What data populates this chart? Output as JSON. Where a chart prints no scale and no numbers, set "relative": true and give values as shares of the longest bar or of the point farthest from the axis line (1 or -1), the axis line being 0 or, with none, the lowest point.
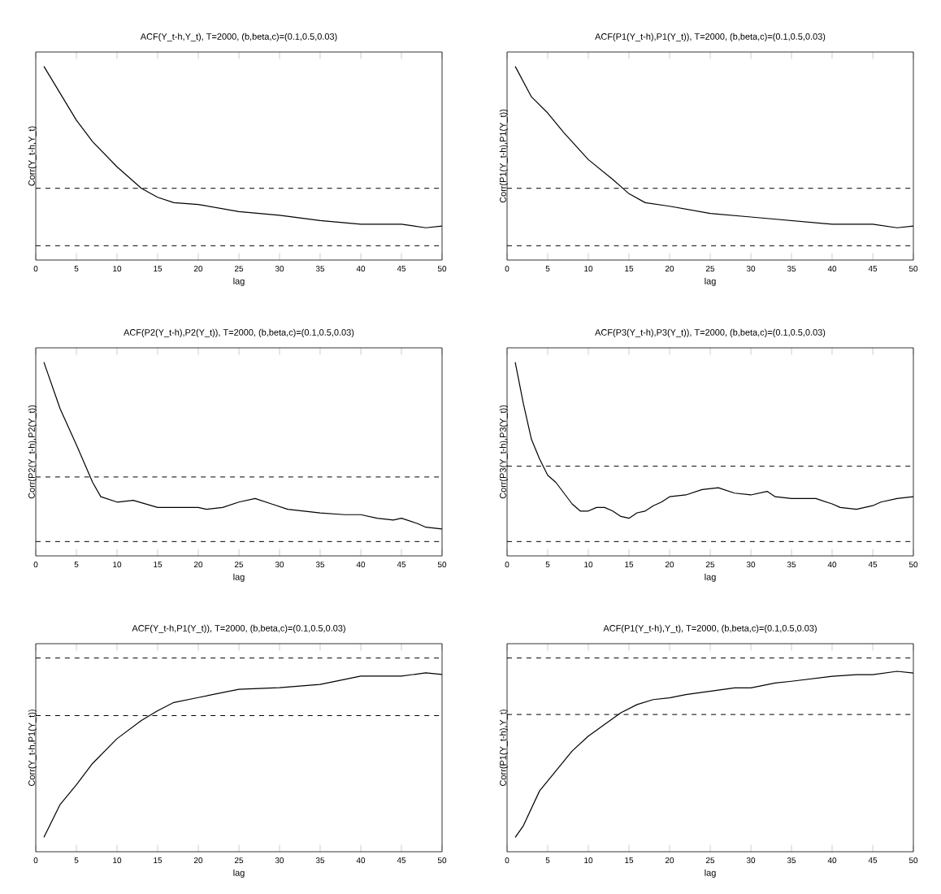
{
  "chart_data": [
    {
      "type": "line",
      "relative": true,
      "title": "ACF(Y_t-h,Y_t), T=2000, (b,beta,c)=(0.1,0.5,0.03)",
      "xlabel": "lag",
      "ylabel": "Corr(Y_t-h,Y_t)",
      "xlim": [
        0,
        50
      ],
      "xticks": [
        0,
        5,
        10,
        15,
        20,
        25,
        30,
        35,
        40,
        45,
        50
      ],
      "x": [
        1,
        3,
        5,
        7,
        10,
        13,
        15,
        17,
        20,
        25,
        30,
        35,
        40,
        45,
        48,
        50
      ],
      "series": [
        {
          "color": "#000000",
          "line_style": "solid",
          "values": [
            1.0,
            0.85,
            0.7,
            0.58,
            0.44,
            0.32,
            0.27,
            0.24,
            0.23,
            0.19,
            0.17,
            0.14,
            0.12,
            0.12,
            0.1,
            0.11
          ]
        }
      ],
      "ref_lines": [
        {
          "axis": "y",
          "value": 0.32,
          "line_style": "dashed"
        },
        {
          "axis": "y",
          "value": 0,
          "line_style": "dashed"
        }
      ]
    },
    {
      "type": "line",
      "relative": true,
      "title": "ACF(P1(Y_t-h),P1(Y_t)), T=2000, (b,beta,c)=(0.1,0.5,0.03)",
      "xlabel": "lag",
      "ylabel": "Corr(P1(Y_t-h),P1(Y_t))",
      "xlim": [
        0,
        50
      ],
      "xticks": [
        0,
        5,
        10,
        15,
        20,
        25,
        30,
        35,
        40,
        45,
        50
      ],
      "x": [
        1,
        3,
        5,
        7,
        10,
        13,
        15,
        17,
        20,
        25,
        30,
        35,
        40,
        45,
        48,
        50
      ],
      "series": [
        {
          "color": "#000000",
          "line_style": "solid",
          "values": [
            1.0,
            0.83,
            0.74,
            0.63,
            0.48,
            0.37,
            0.29,
            0.24,
            0.22,
            0.18,
            0.16,
            0.14,
            0.12,
            0.12,
            0.1,
            0.11
          ]
        }
      ],
      "ref_lines": [
        {
          "axis": "y",
          "value": 0.32,
          "line_style": "dashed"
        },
        {
          "axis": "y",
          "value": 0,
          "line_style": "dashed"
        }
      ]
    },
    {
      "type": "line",
      "relative": true,
      "title": "ACF(P2(Y_t-h),P2(Y_t)), T=2000, (b,beta,c)=(0.1,0.5,0.03)",
      "xlabel": "lag",
      "ylabel": "Corr(P2(Y_t-h),P2(Y_t))",
      "xlim": [
        0,
        50
      ],
      "xticks": [
        0,
        5,
        10,
        15,
        20,
        25,
        30,
        35,
        40,
        45,
        50
      ],
      "x": [
        1,
        3,
        5,
        7,
        8,
        10,
        12,
        15,
        18,
        20,
        21,
        23,
        25,
        27,
        29,
        31,
        33,
        35,
        38,
        40,
        42,
        44,
        45,
        47,
        48,
        50
      ],
      "series": [
        {
          "color": "#000000",
          "line_style": "solid",
          "values": [
            1.0,
            0.74,
            0.54,
            0.33,
            0.25,
            0.22,
            0.23,
            0.19,
            0.19,
            0.19,
            0.18,
            0.19,
            0.22,
            0.24,
            0.21,
            0.18,
            0.17,
            0.16,
            0.15,
            0.15,
            0.13,
            0.12,
            0.13,
            0.1,
            0.08,
            0.07
          ]
        }
      ],
      "ref_lines": [
        {
          "axis": "y",
          "value": 0.36,
          "line_style": "dashed"
        },
        {
          "axis": "y",
          "value": 0,
          "line_style": "dashed"
        }
      ]
    },
    {
      "type": "line",
      "relative": true,
      "title": "ACF(P3(Y_t-h),P3(Y_t)), T=2000, (b,beta,c)=(0.1,0.5,0.03)",
      "xlabel": "lag",
      "ylabel": "Corr(P3(Y_t-h),P3(Y_t))",
      "xlim": [
        0,
        50
      ],
      "xticks": [
        0,
        5,
        10,
        15,
        20,
        25,
        30,
        35,
        40,
        45,
        50
      ],
      "x": [
        1,
        2,
        3,
        4,
        5,
        6,
        7,
        8,
        9,
        10,
        11,
        12,
        13,
        14,
        15,
        16,
        17,
        18,
        19,
        20,
        22,
        24,
        26,
        28,
        30,
        32,
        33,
        35,
        38,
        40,
        41,
        43,
        45,
        46,
        48,
        50
      ],
      "series": [
        {
          "color": "#000000",
          "line_style": "solid",
          "values": [
            1.0,
            0.77,
            0.57,
            0.46,
            0.37,
            0.33,
            0.27,
            0.21,
            0.17,
            0.17,
            0.19,
            0.19,
            0.17,
            0.14,
            0.13,
            0.16,
            0.17,
            0.2,
            0.22,
            0.25,
            0.26,
            0.29,
            0.3,
            0.27,
            0.26,
            0.28,
            0.25,
            0.24,
            0.24,
            0.21,
            0.19,
            0.18,
            0.2,
            0.22,
            0.24,
            0.25
          ]
        }
      ],
      "ref_lines": [
        {
          "axis": "y",
          "value": 0.42,
          "line_style": "dashed"
        },
        {
          "axis": "y",
          "value": 0,
          "line_style": "dashed"
        }
      ]
    },
    {
      "type": "line",
      "relative": true,
      "title": "ACF(Y_t-h,P1(Y_t)), T=2000, (b,beta,c)=(0.1,0.5,0.03)",
      "xlabel": "lag",
      "ylabel": "Corr(Y_t-h,P1(Y_t))",
      "xlim": [
        0,
        50
      ],
      "xticks": [
        0,
        5,
        10,
        15,
        20,
        25,
        30,
        35,
        40,
        45,
        50
      ],
      "x": [
        1,
        3,
        5,
        7,
        10,
        13,
        15,
        17,
        20,
        25,
        30,
        35,
        40,
        45,
        48,
        50
      ],
      "series": [
        {
          "color": "#000000",
          "line_style": "solid",
          "values": [
            0.0,
            0.2,
            0.32,
            0.45,
            0.6,
            0.71,
            0.77,
            0.82,
            0.85,
            0.9,
            0.91,
            0.93,
            0.98,
            0.98,
            1.0,
            0.99
          ]
        }
      ],
      "ref_lines": [
        {
          "axis": "y",
          "value": 1.09,
          "line_style": "dashed"
        },
        {
          "axis": "y",
          "value": 0.74,
          "line_style": "dashed"
        }
      ]
    },
    {
      "type": "line",
      "relative": true,
      "title": "ACF(P1(Y_t-h),Y_t), T=2000, (b,beta,c)=(0.1,0.5,0.03)",
      "xlabel": "lag",
      "ylabel": "Corr(P1(Y_t-h),Y_t)",
      "xlim": [
        0,
        50
      ],
      "xticks": [
        0,
        5,
        10,
        15,
        20,
        25,
        30,
        35,
        40,
        45,
        50
      ],
      "x": [
        1,
        2,
        4,
        6,
        8,
        10,
        12,
        14,
        16,
        18,
        20,
        22,
        25,
        28,
        30,
        33,
        35,
        40,
        43,
        45,
        48,
        50
      ],
      "series": [
        {
          "color": "#000000",
          "line_style": "solid",
          "values": [
            0.0,
            0.07,
            0.28,
            0.4,
            0.52,
            0.61,
            0.68,
            0.75,
            0.8,
            0.83,
            0.84,
            0.86,
            0.88,
            0.9,
            0.9,
            0.93,
            0.94,
            0.97,
            0.98,
            0.98,
            1.0,
            0.99
          ]
        }
      ],
      "ref_lines": [
        {
          "axis": "y",
          "value": 1.08,
          "line_style": "dashed"
        },
        {
          "axis": "y",
          "value": 0.74,
          "line_style": "dashed"
        }
      ]
    }
  ]
}
